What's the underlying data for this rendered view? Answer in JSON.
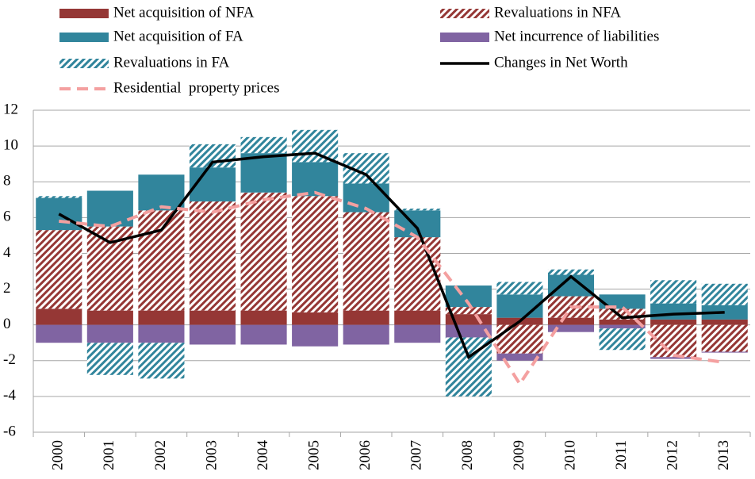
{
  "chart_data": {
    "type": "bar",
    "categories": [
      "2000",
      "2001",
      "2002",
      "2003",
      "2004",
      "2005",
      "2006",
      "2007",
      "2008",
      "2009",
      "2010",
      "2011",
      "2012",
      "2013"
    ],
    "series": [
      {
        "name": "Net acquisition of NFA",
        "color": "#953735",
        "style": "solid",
        "values": [
          0.9,
          0.8,
          0.8,
          0.8,
          0.8,
          0.7,
          0.8,
          0.8,
          0.6,
          0.4,
          0.4,
          0.3,
          0.3,
          0.3
        ]
      },
      {
        "name": "Revaluations in NFA",
        "color": "#953735",
        "style": "hatched",
        "values": [
          4.4,
          4.7,
          5.6,
          6.1,
          6.6,
          6.5,
          5.5,
          4.1,
          0.4,
          -1.6,
          1.2,
          0.6,
          -1.8,
          -1.5
        ]
      },
      {
        "name": "Net acquisition of FA",
        "color": "#31859c",
        "style": "solid",
        "values": [
          1.8,
          2.0,
          2.0,
          1.9,
          2.2,
          1.9,
          1.6,
          1.5,
          1.2,
          1.3,
          1.2,
          0.8,
          0.9,
          0.8
        ]
      },
      {
        "name": "Net incurrence of liabilities",
        "color": "#8064a2",
        "style": "solid",
        "values": [
          -1.0,
          -1.0,
          -1.0,
          -1.1,
          -1.1,
          -1.2,
          -1.1,
          -1.0,
          -0.7,
          -0.4,
          -0.4,
          -0.2,
          -0.1,
          -0.05
        ]
      },
      {
        "name": "Revaluations in FA",
        "color": "#31859c",
        "style": "hatched",
        "values": [
          0.1,
          -1.8,
          -2.0,
          1.3,
          0.9,
          1.8,
          1.7,
          0.1,
          -3.3,
          0.7,
          0.3,
          -1.2,
          1.3,
          1.2
        ]
      },
      {
        "name": "Changes in Net Worth",
        "color": "#000000",
        "style": "line",
        "values": [
          6.2,
          4.6,
          5.3,
          9.1,
          9.4,
          9.6,
          8.4,
          5.4,
          -1.8,
          0.2,
          2.7,
          0.4,
          0.6,
          0.7
        ]
      },
      {
        "name": "Residential  property prices",
        "color": "#f4a0a0",
        "style": "dashed",
        "values": [
          5.8,
          5.5,
          6.6,
          6.3,
          7.0,
          7.4,
          6.5,
          4.9,
          1.2,
          -3.3,
          1.0,
          1.0,
          -1.7,
          -2.1
        ]
      }
    ],
    "ylim": [
      -6,
      12
    ],
    "yticks": [
      -6,
      -4,
      -2,
      0,
      2,
      4,
      6,
      8,
      10,
      12
    ],
    "grid": true
  }
}
